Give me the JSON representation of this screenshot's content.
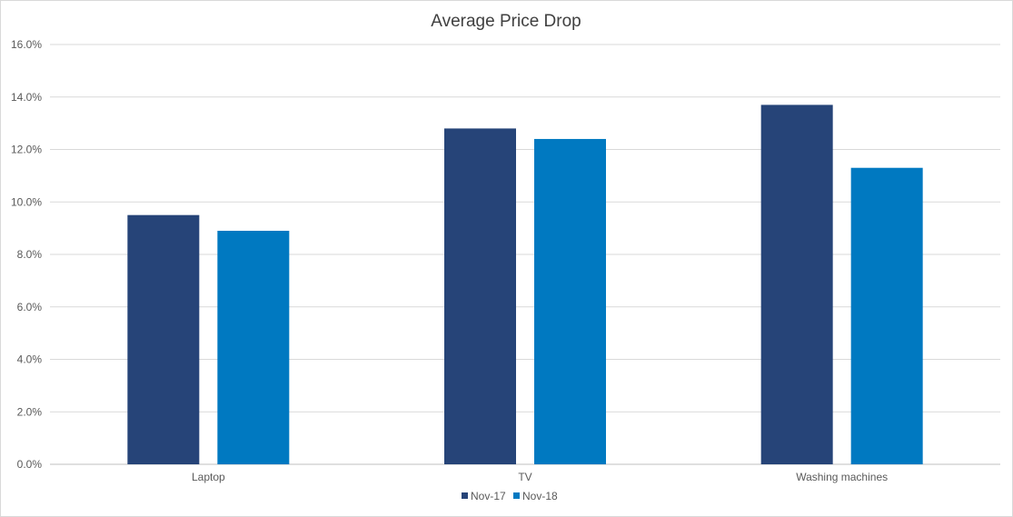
{
  "chart_data": {
    "type": "bar",
    "title": "Average Price Drop",
    "xlabel": "",
    "ylabel": "",
    "categories": [
      "Laptop",
      "TV",
      "Washing machines"
    ],
    "series": [
      {
        "name": "Nov-17",
        "values": [
          0.095,
          0.128,
          0.137
        ],
        "color": "#264478"
      },
      {
        "name": "Nov-18",
        "values": [
          0.089,
          0.124,
          0.113
        ],
        "color": "#0079c1"
      }
    ],
    "ylim": [
      0,
      0.16
    ],
    "ytick_values": [
      0,
      0.02,
      0.04,
      0.06,
      0.08,
      0.1,
      0.12,
      0.14,
      0.16
    ],
    "ytick_labels": [
      "0.0%",
      "2.0%",
      "4.0%",
      "6.0%",
      "8.0%",
      "10.0%",
      "12.0%",
      "14.0%",
      "16.0%"
    ],
    "grid": true,
    "legend_position": "bottom"
  }
}
